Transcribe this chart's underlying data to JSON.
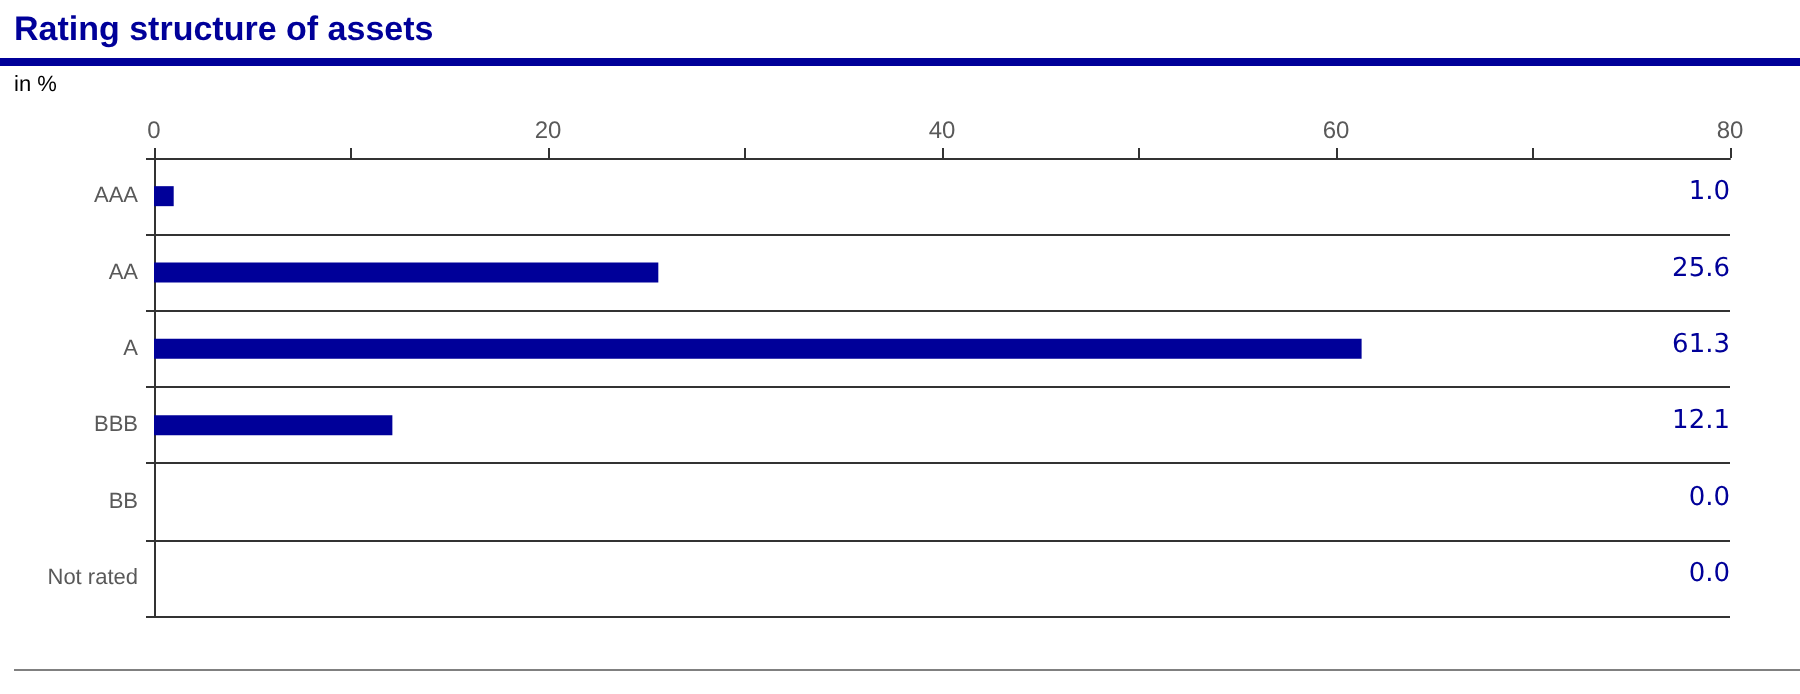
{
  "chart_data": {
    "type": "bar",
    "orientation": "horizontal",
    "title": "Rating structure of assets",
    "xlabel": "in %",
    "categories": [
      "AAA",
      "AA",
      "A",
      "BBB",
      "BB",
      "Not rated"
    ],
    "values": [
      1.0,
      25.6,
      61.3,
      12.1,
      0.0,
      0.0
    ],
    "value_labels": [
      "1.0",
      "25.6",
      "61.3",
      "12.1",
      "0.0",
      "0.0"
    ],
    "color": "#000099",
    "xlim": [
      0,
      80
    ],
    "xticks": [
      0,
      {
        "value": 10,
        "label": null
      },
      20,
      {
        "value": 30,
        "label": null
      },
      40,
      {
        "value": 50,
        "label": null
      },
      60,
      {
        "value": 70,
        "label": null
      },
      80
    ],
    "grid": "y"
  }
}
